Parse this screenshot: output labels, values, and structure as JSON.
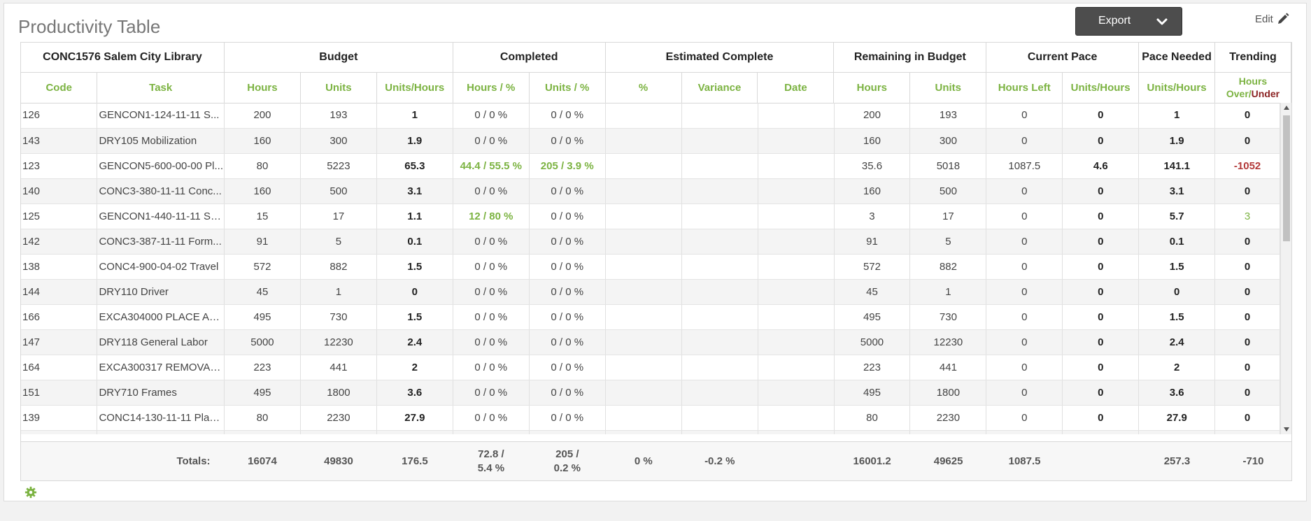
{
  "page": {
    "title": "Productivity Table",
    "export_label": "Export",
    "edit_label": "Edit"
  },
  "colors": {
    "accent_green": "#7cb342",
    "under_red": "#8b2323",
    "negative_red": "#b33a3a",
    "button_dark": "#4d4d4d"
  },
  "groups": {
    "project": "CONC1576 Salem City Library",
    "budget": "Budget",
    "completed": "Completed",
    "estimated": "Estimated Complete",
    "remaining": "Remaining in Budget",
    "current_pace": "Current Pace",
    "pace_needed": "Pace Needed",
    "trending": "Trending"
  },
  "columns": {
    "code": "Code",
    "task": "Task",
    "hours": "Hours",
    "units": "Units",
    "units_hours": "Units/Hours",
    "hours_pct": "Hours / %",
    "units_pct": "Units / %",
    "pct": "%",
    "variance": "Variance",
    "date": "Date",
    "rem_hours": "Hours",
    "rem_units": "Units",
    "hours_left": "Hours Left",
    "cp_units_hours": "Units/Hours",
    "pn_units_hours": "Units/Hours",
    "trend_over": "Hours Over/",
    "trend_under": "Under"
  },
  "rows": [
    {
      "code": "126",
      "task": "GENCON1-124-11-11 S...",
      "hours": "200",
      "units": "193",
      "uph": "1",
      "chp": "0 / 0 %",
      "cup": "0 / 0 %",
      "pct": "",
      "var": "",
      "date": "",
      "rh": "200",
      "ru": "193",
      "hl": "0",
      "cuph": "0",
      "puph": "1",
      "trend": "0"
    },
    {
      "code": "143",
      "task": "DRY105 Mobilization",
      "hours": "160",
      "units": "300",
      "uph": "1.9",
      "chp": "0 / 0 %",
      "cup": "0 / 0 %",
      "pct": "",
      "var": "",
      "date": "",
      "rh": "160",
      "ru": "300",
      "hl": "0",
      "cuph": "0",
      "puph": "1.9",
      "trend": "0"
    },
    {
      "code": "123",
      "task": "GENCON5-600-00-00 Pl...",
      "hours": "80",
      "units": "5223",
      "uph": "65.3",
      "chp": "44.4 / 55.5 %",
      "cup": "205 / 3.9 %",
      "pct": "",
      "var": "",
      "date": "",
      "rh": "35.6",
      "ru": "5018",
      "hl": "1087.5",
      "cuph": "4.6",
      "puph": "141.1",
      "trend": "-1052"
    },
    {
      "code": "140",
      "task": "CONC3-380-11-11 Conc...",
      "hours": "160",
      "units": "500",
      "uph": "3.1",
      "chp": "0 / 0 %",
      "cup": "0 / 0 %",
      "pct": "",
      "var": "",
      "date": "",
      "rh": "160",
      "ru": "500",
      "hl": "0",
      "cuph": "0",
      "puph": "3.1",
      "trend": "0"
    },
    {
      "code": "125",
      "task": "GENCON1-440-11-11 ST...",
      "hours": "15",
      "units": "17",
      "uph": "1.1",
      "chp": "12 / 80 %",
      "cup": "0 / 0 %",
      "pct": "",
      "var": "",
      "date": "",
      "rh": "3",
      "ru": "17",
      "hl": "0",
      "cuph": "0",
      "puph": "5.7",
      "trend": "3"
    },
    {
      "code": "142",
      "task": "CONC3-387-11-11 Form...",
      "hours": "91",
      "units": "5",
      "uph": "0.1",
      "chp": "0 / 0 %",
      "cup": "0 / 0 %",
      "pct": "",
      "var": "",
      "date": "",
      "rh": "91",
      "ru": "5",
      "hl": "0",
      "cuph": "0",
      "puph": "0.1",
      "trend": "0"
    },
    {
      "code": "138",
      "task": "CONC4-900-04-02 Travel",
      "hours": "572",
      "units": "882",
      "uph": "1.5",
      "chp": "0 / 0 %",
      "cup": "0 / 0 %",
      "pct": "",
      "var": "",
      "date": "",
      "rh": "572",
      "ru": "882",
      "hl": "0",
      "cuph": "0",
      "puph": "1.5",
      "trend": "0"
    },
    {
      "code": "144",
      "task": "DRY110 Driver",
      "hours": "45",
      "units": "1",
      "uph": "0",
      "chp": "0 / 0 %",
      "cup": "0 / 0 %",
      "pct": "",
      "var": "",
      "date": "",
      "rh": "45",
      "ru": "1",
      "hl": "0",
      "cuph": "0",
      "puph": "0",
      "trend": "0"
    },
    {
      "code": "166",
      "task": "EXCA304000 PLACE ASP...",
      "hours": "495",
      "units": "730",
      "uph": "1.5",
      "chp": "0 / 0 %",
      "cup": "0 / 0 %",
      "pct": "",
      "var": "",
      "date": "",
      "rh": "495",
      "ru": "730",
      "hl": "0",
      "cuph": "0",
      "puph": "1.5",
      "trend": "0"
    },
    {
      "code": "147",
      "task": "DRY118 General Labor",
      "hours": "5000",
      "units": "12230",
      "uph": "2.4",
      "chp": "0 / 0 %",
      "cup": "0 / 0 %",
      "pct": "",
      "var": "",
      "date": "",
      "rh": "5000",
      "ru": "12230",
      "hl": "0",
      "cuph": "0",
      "puph": "2.4",
      "trend": "0"
    },
    {
      "code": "164",
      "task": "EXCA300317 REMOVAL ...",
      "hours": "223",
      "units": "441",
      "uph": "2",
      "chp": "0 / 0 %",
      "cup": "0 / 0 %",
      "pct": "",
      "var": "",
      "date": "",
      "rh": "223",
      "ru": "441",
      "hl": "0",
      "cuph": "0",
      "puph": "2",
      "trend": "0"
    },
    {
      "code": "151",
      "task": "DRY710 Frames",
      "hours": "495",
      "units": "1800",
      "uph": "3.6",
      "chp": "0 / 0 %",
      "cup": "0 / 0 %",
      "pct": "",
      "var": "",
      "date": "",
      "rh": "495",
      "ru": "1800",
      "hl": "0",
      "cuph": "0",
      "puph": "3.6",
      "trend": "0"
    },
    {
      "code": "139",
      "task": "CONC14-130-11-11 Plac...",
      "hours": "80",
      "units": "2230",
      "uph": "27.9",
      "chp": "0 / 0 %",
      "cup": "0 / 0 %",
      "pct": "",
      "var": "",
      "date": "",
      "rh": "80",
      "ru": "2230",
      "hl": "0",
      "cuph": "0",
      "puph": "27.9",
      "trend": "0"
    }
  ],
  "totals": {
    "label": "Totals:",
    "hours": "16074",
    "units": "49830",
    "uph": "176.5",
    "chp_line1": "72.8 /",
    "chp_line2": "5.4 %",
    "cup_line1": "205 /",
    "cup_line2": "0.2 %",
    "pct": "0 %",
    "var": "-0.2 %",
    "date": "",
    "rh": "16001.2",
    "ru": "49625",
    "hl": "1087.5",
    "cuph": "",
    "puph": "257.3",
    "trend": "-710"
  }
}
